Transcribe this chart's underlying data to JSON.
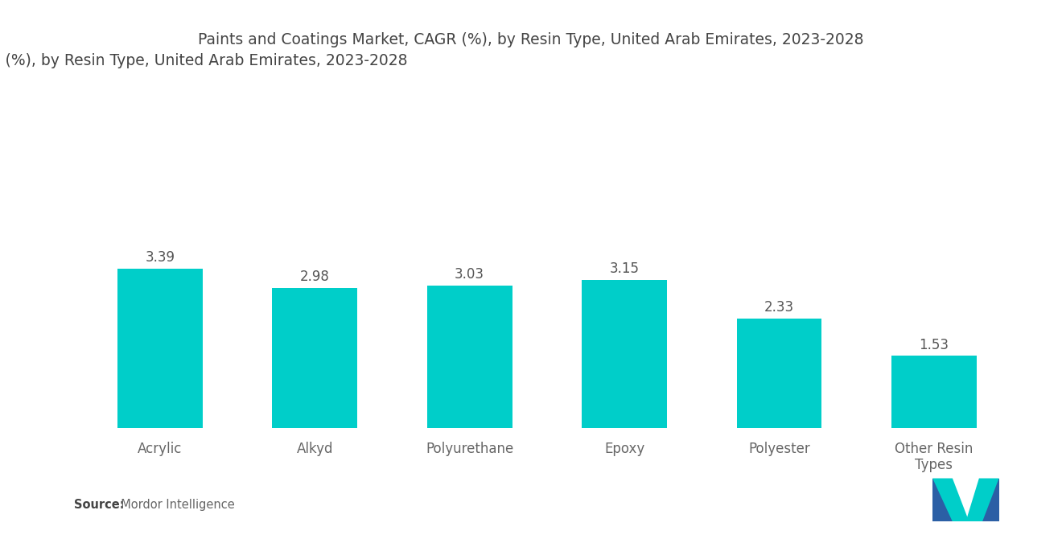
{
  "title": "Paints and Coatings Market, CAGR (%), by Resin Type, United Arab Emirates, 2023-2028",
  "categories": [
    "Acrylic",
    "Alkyd",
    "Polyurethane",
    "Epoxy",
    "Polyester",
    "Other Resin\nTypes"
  ],
  "values": [
    3.39,
    2.98,
    3.03,
    3.15,
    2.33,
    1.53
  ],
  "bar_color": "#00CEC9",
  "background_color": "#ffffff",
  "title_fontsize": 13.5,
  "label_fontsize": 12,
  "value_fontsize": 12,
  "source_bold": "Source:",
  "source_normal": "  Mordor Intelligence",
  "ylim": [
    0,
    7.5
  ],
  "bar_width": 0.55,
  "dark_blue": "#2B5FA5",
  "teal": "#00CEC9"
}
